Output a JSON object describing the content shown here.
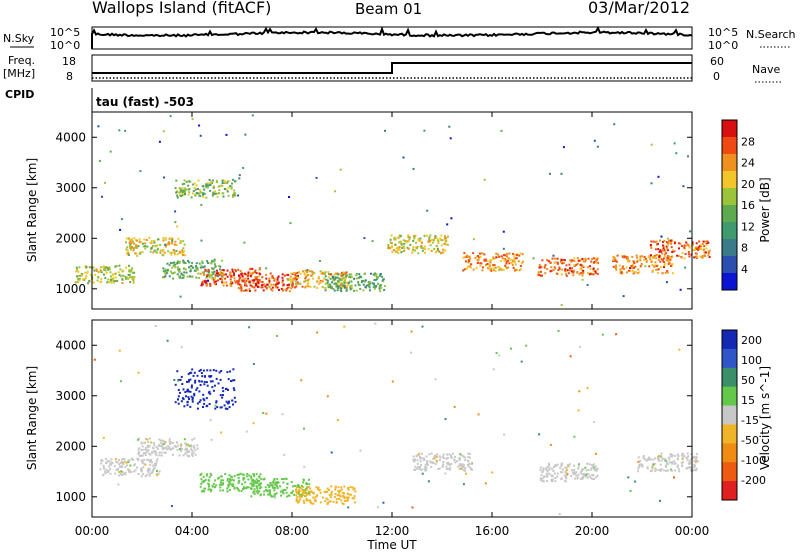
{
  "header": {
    "station": "Wallops Island (fitACF)",
    "beam": "Beam 01",
    "date": "03/Mar/2012"
  },
  "strip": {
    "nsky_label": "N.Sky",
    "nsky_tick_top": "10^5",
    "nsky_tick_bottom": "10^0",
    "nsearch_label": "N.Search",
    "nsearch_tick_top": "10^5",
    "nsearch_tick_bottom": "10^0",
    "freq_label": "Freq.",
    "freq_unit": "[MHz]",
    "freq_tick_top": "18",
    "freq_tick_bottom": "8",
    "nave_label": "Nave",
    "nave_tick_top": "60",
    "nave_tick_bottom": "0",
    "cpid_label": "CPID",
    "cpid_value": "tau (fast) -503"
  },
  "x_axis": {
    "label": "Time UT",
    "ticks": [
      "00:00",
      "04:00",
      "08:00",
      "12:00",
      "16:00",
      "20:00",
      "00:00"
    ]
  },
  "colors": {
    "power_scale": [
      "#0a14d2",
      "#2a4fb0",
      "#3a7a8a",
      "#3f9a6e",
      "#5faa50",
      "#9cc43a",
      "#f2c62a",
      "#f0901e",
      "#f04a14",
      "#d81010"
    ],
    "velocity_scale": [
      "#1428b4",
      "#2f55c8",
      "#3a8f6a",
      "#64c84a",
      "#c8c8c8",
      "#f0b428",
      "#f08c14",
      "#ee5a10",
      "#e02020"
    ],
    "ground_scatter": "#c8c8c8"
  },
  "chart_data": [
    {
      "type": "heatmap",
      "title": "Power",
      "ylabel": "Slant Range [km]",
      "xlabel": "",
      "yticks": [
        "1000",
        "2000",
        "3000",
        "4000"
      ],
      "ylim": [
        600,
        4500
      ],
      "xlim_hours": [
        0,
        24
      ],
      "colorbar": {
        "label": "Power [dB]",
        "ticks": [
          "4",
          "8",
          "12",
          "16",
          "20",
          "24",
          "28"
        ],
        "range": [
          0,
          32
        ]
      },
      "bands": [
        {
          "t": 0.5,
          "range": 1300,
          "value": 18
        },
        {
          "t": 2.5,
          "range": 1850,
          "value": 20
        },
        {
          "t": 4.0,
          "range": 1400,
          "value": 14
        },
        {
          "t": 4.5,
          "range": 3000,
          "value": 16
        },
        {
          "t": 5.5,
          "range": 1250,
          "value": 26
        },
        {
          "t": 7.0,
          "range": 1150,
          "value": 28
        },
        {
          "t": 9.0,
          "range": 1200,
          "value": 22
        },
        {
          "t": 10.5,
          "range": 1150,
          "value": 14
        },
        {
          "t": 13.0,
          "range": 1900,
          "value": 20
        },
        {
          "t": 16.0,
          "range": 1550,
          "value": 24
        },
        {
          "t": 19.0,
          "range": 1450,
          "value": 26
        },
        {
          "t": 22.0,
          "range": 1500,
          "value": 24
        },
        {
          "t": 23.5,
          "range": 1800,
          "value": 26
        }
      ]
    },
    {
      "type": "heatmap",
      "title": "Velocity",
      "ylabel": "Slant Range [km]",
      "xlabel": "Time UT",
      "yticks": [
        "1000",
        "2000",
        "3000",
        "4000"
      ],
      "ylim": [
        600,
        4500
      ],
      "xlim_hours": [
        0,
        24
      ],
      "colorbar": {
        "label": "Velocity [m s^-1]",
        "ticks": [
          "200",
          "100",
          "50",
          "15",
          "-15",
          "-50",
          "-100",
          "-200"
        ],
        "range": [
          -250,
          250
        ]
      },
      "bands": [
        {
          "t": 1.5,
          "range": 1600,
          "value": 0
        },
        {
          "t": 3.0,
          "range": 2000,
          "value": 0
        },
        {
          "t": 4.5,
          "range": 3150,
          "value": 220
        },
        {
          "t": 5.5,
          "range": 1300,
          "value": 40
        },
        {
          "t": 7.5,
          "range": 1200,
          "value": 40
        },
        {
          "t": 9.3,
          "range": 1050,
          "value": -60
        },
        {
          "t": 14.0,
          "range": 1700,
          "value": 0
        },
        {
          "t": 19.0,
          "range": 1500,
          "value": 0
        },
        {
          "t": 23.0,
          "range": 1700,
          "value": 0
        }
      ]
    }
  ]
}
